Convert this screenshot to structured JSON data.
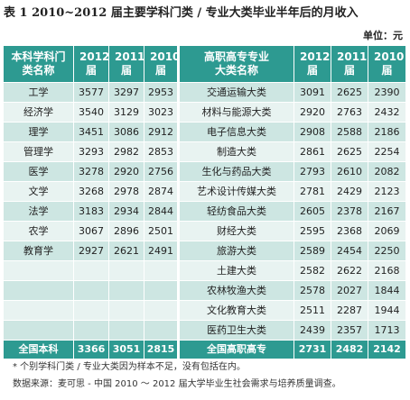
{
  "title": "表 1  2010~2012 届主要学科门类 / 专业大类毕业半年后的月收入",
  "unit": "单位：元",
  "headers": {
    "left_name": "本科学科门类名称",
    "right_name": "高职高专专业大类名称",
    "y2012": "2012届",
    "y2011": "2011届",
    "y2010": "2010届"
  },
  "rows": [
    {
      "lname": "工学",
      "l2012": "3577",
      "l2011": "3297",
      "l2010": "2953",
      "rname": "交通运输大类",
      "r2012": "3091",
      "r2011": "2625",
      "r2010": "2390"
    },
    {
      "lname": "经济学",
      "l2012": "3540",
      "l2011": "3129",
      "l2010": "3023",
      "rname": "材料与能源大类",
      "r2012": "2920",
      "r2011": "2763",
      "r2010": "2432"
    },
    {
      "lname": "理学",
      "l2012": "3451",
      "l2011": "3086",
      "l2010": "2912",
      "rname": "电子信息大类",
      "r2012": "2908",
      "r2011": "2588",
      "r2010": "2186"
    },
    {
      "lname": "管理学",
      "l2012": "3293",
      "l2011": "2982",
      "l2010": "2853",
      "rname": "制造大类",
      "r2012": "2861",
      "r2011": "2625",
      "r2010": "2254"
    },
    {
      "lname": "医学",
      "l2012": "3278",
      "l2011": "2920",
      "l2010": "2756",
      "rname": "生化与药品大类",
      "r2012": "2793",
      "r2011": "2610",
      "r2010": "2082"
    },
    {
      "lname": "文学",
      "l2012": "3268",
      "l2011": "2978",
      "l2010": "2874",
      "rname": "艺术设计传媒大类",
      "r2012": "2781",
      "r2011": "2429",
      "r2010": "2123"
    },
    {
      "lname": "法学",
      "l2012": "3183",
      "l2011": "2934",
      "l2010": "2844",
      "rname": "轻纺食品大类",
      "r2012": "2605",
      "r2011": "2378",
      "r2010": "2167"
    },
    {
      "lname": "农学",
      "l2012": "3067",
      "l2011": "2896",
      "l2010": "2501",
      "rname": "财经大类",
      "r2012": "2595",
      "r2011": "2368",
      "r2010": "2069"
    },
    {
      "lname": "教育学",
      "l2012": "2927",
      "l2011": "2621",
      "l2010": "2491",
      "rname": "旅游大类",
      "r2012": "2589",
      "r2011": "2454",
      "r2010": "2250"
    },
    {
      "lname": "",
      "l2012": "",
      "l2011": "",
      "l2010": "",
      "rname": "土建大类",
      "r2012": "2582",
      "r2011": "2622",
      "r2010": "2168"
    },
    {
      "lname": "",
      "l2012": "",
      "l2011": "",
      "l2010": "",
      "rname": "农林牧渔大类",
      "r2012": "2578",
      "r2011": "2027",
      "r2010": "1844"
    },
    {
      "lname": "",
      "l2012": "",
      "l2011": "",
      "l2010": "",
      "rname": "文化教育大类",
      "r2012": "2511",
      "r2011": "2287",
      "r2010": "1944"
    },
    {
      "lname": "",
      "l2012": "",
      "l2011": "",
      "l2010": "",
      "rname": "医药卫生大类",
      "r2012": "2439",
      "r2011": "2357",
      "r2010": "1713"
    }
  ],
  "total": {
    "lname": "全国本科",
    "l2012": "3366",
    "l2011": "3051",
    "l2010": "2815",
    "rname": "全国高职高专",
    "r2012": "2731",
    "r2011": "2482",
    "r2010": "2142"
  },
  "notes": [
    "* 个别学科门类 / 专业大类因为样本不足，没有包括在内。",
    "数据来源：麦可思 - 中国 2010 ～ 2012 届大学毕业生社会需求与培养质量调查。"
  ]
}
